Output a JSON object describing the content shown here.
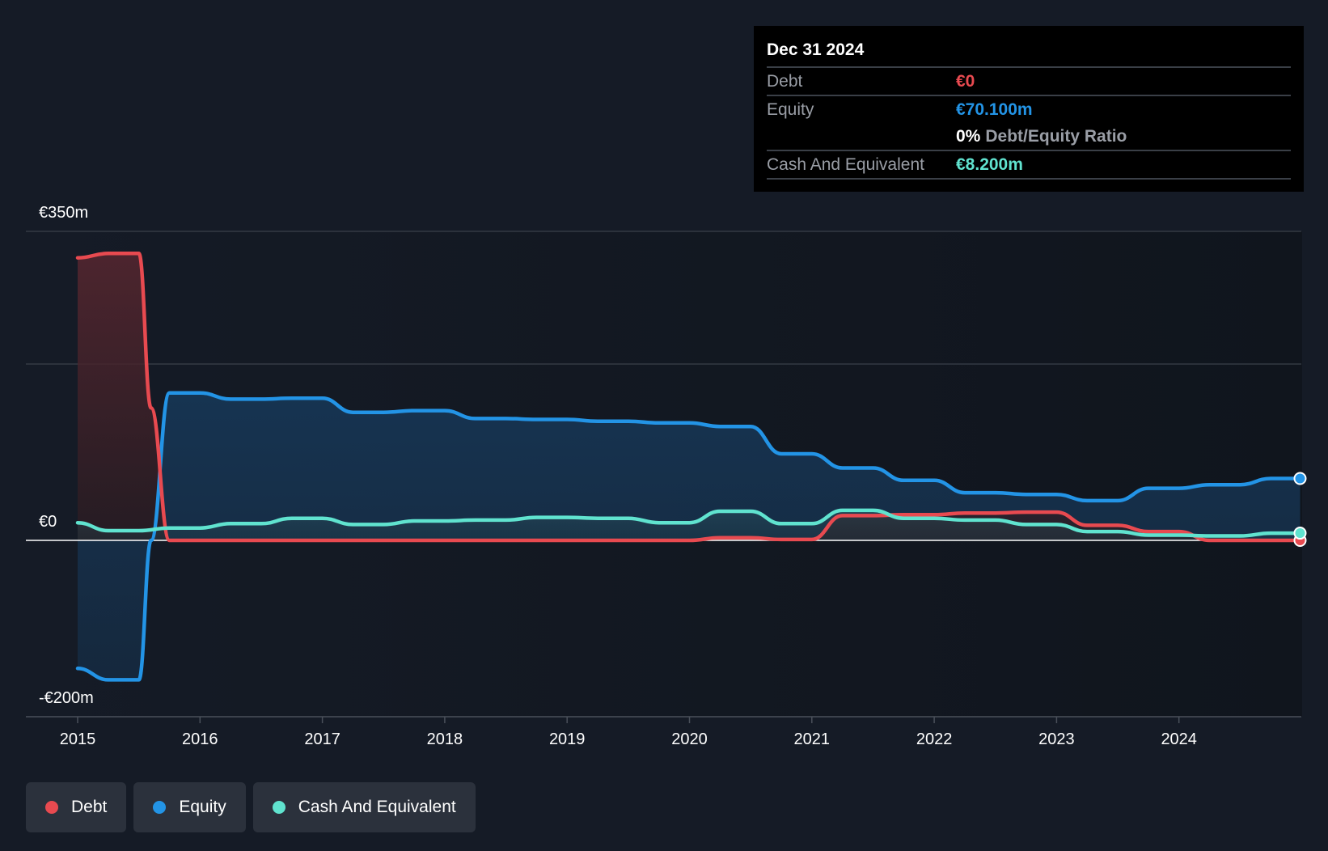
{
  "tooltip": {
    "date": "Dec 31 2024",
    "debt_label": "Debt",
    "debt_value": "€0",
    "equity_label": "Equity",
    "equity_value": "€70.100m",
    "ratio_value": "0%",
    "ratio_label": "Debt/Equity Ratio",
    "cash_label": "Cash And Equivalent",
    "cash_value": "€8.200m"
  },
  "legend": {
    "debt": "Debt",
    "equity": "Equity",
    "cash": "Cash And Equivalent"
  },
  "colors": {
    "debt": "#e84a50",
    "equity": "#2394e6",
    "cash": "#60e3cf",
    "background": "#151b26"
  },
  "chart_data": {
    "type": "area",
    "y_tick_labels": [
      "€350m",
      "€0",
      "-€200m"
    ],
    "x_tick_labels": [
      "2015",
      "2016",
      "2017",
      "2018",
      "2019",
      "2020",
      "2021",
      "2022",
      "2023",
      "2024"
    ],
    "ylim": [
      -200,
      350
    ],
    "unit": "€m",
    "grid": true,
    "legend_position": "bottom-left",
    "series": [
      {
        "name": "Debt",
        "points": [
          [
            2015.0,
            320
          ],
          [
            2015.25,
            325
          ],
          [
            2015.5,
            325
          ],
          [
            2015.6,
            150
          ],
          [
            2015.75,
            0
          ],
          [
            2019.75,
            0
          ],
          [
            2020.0,
            0
          ],
          [
            2020.25,
            3
          ],
          [
            2020.5,
            3
          ],
          [
            2020.75,
            1
          ],
          [
            2021.0,
            1
          ],
          [
            2021.25,
            28
          ],
          [
            2021.5,
            28
          ],
          [
            2021.75,
            29
          ],
          [
            2022.0,
            29
          ],
          [
            2022.25,
            31
          ],
          [
            2022.5,
            31
          ],
          [
            2022.75,
            32
          ],
          [
            2023.0,
            32
          ],
          [
            2023.25,
            17
          ],
          [
            2023.5,
            17
          ],
          [
            2023.75,
            10
          ],
          [
            2024.0,
            10
          ],
          [
            2024.25,
            0
          ],
          [
            2024.99,
            0
          ]
        ]
      },
      {
        "name": "Equity",
        "points": [
          [
            2015.0,
            -145
          ],
          [
            2015.25,
            -158
          ],
          [
            2015.5,
            -158
          ],
          [
            2015.6,
            0
          ],
          [
            2015.75,
            167
          ],
          [
            2016.0,
            167
          ],
          [
            2016.25,
            160
          ],
          [
            2016.5,
            160
          ],
          [
            2016.75,
            161
          ],
          [
            2017.0,
            161
          ],
          [
            2017.25,
            145
          ],
          [
            2017.5,
            145
          ],
          [
            2017.75,
            147
          ],
          [
            2018.0,
            147
          ],
          [
            2018.25,
            138
          ],
          [
            2018.5,
            138
          ],
          [
            2018.75,
            137
          ],
          [
            2019.0,
            137
          ],
          [
            2019.25,
            135
          ],
          [
            2019.5,
            135
          ],
          [
            2019.75,
            133
          ],
          [
            2020.0,
            133
          ],
          [
            2020.25,
            129
          ],
          [
            2020.5,
            129
          ],
          [
            2020.75,
            98
          ],
          [
            2021.0,
            98
          ],
          [
            2021.25,
            82
          ],
          [
            2021.5,
            82
          ],
          [
            2021.75,
            68
          ],
          [
            2022.0,
            68
          ],
          [
            2022.25,
            54
          ],
          [
            2022.5,
            54
          ],
          [
            2022.75,
            52
          ],
          [
            2023.0,
            52
          ],
          [
            2023.25,
            45
          ],
          [
            2023.5,
            45
          ],
          [
            2023.75,
            59
          ],
          [
            2024.0,
            59
          ],
          [
            2024.25,
            63
          ],
          [
            2024.5,
            63
          ],
          [
            2024.75,
            70.1
          ],
          [
            2024.99,
            70.1
          ]
        ]
      },
      {
        "name": "Cash And Equivalent",
        "points": [
          [
            2015.0,
            20
          ],
          [
            2015.25,
            11
          ],
          [
            2015.5,
            11
          ],
          [
            2015.75,
            14
          ],
          [
            2016.0,
            14
          ],
          [
            2016.25,
            19
          ],
          [
            2016.5,
            19
          ],
          [
            2016.75,
            25
          ],
          [
            2017.0,
            25
          ],
          [
            2017.25,
            18
          ],
          [
            2017.5,
            18
          ],
          [
            2017.75,
            22
          ],
          [
            2018.0,
            22
          ],
          [
            2018.25,
            23
          ],
          [
            2018.5,
            23
          ],
          [
            2018.75,
            26
          ],
          [
            2019.0,
            26
          ],
          [
            2019.25,
            25
          ],
          [
            2019.5,
            25
          ],
          [
            2019.75,
            20
          ],
          [
            2020.0,
            20
          ],
          [
            2020.25,
            33
          ],
          [
            2020.5,
            33
          ],
          [
            2020.75,
            19
          ],
          [
            2021.0,
            19
          ],
          [
            2021.25,
            34
          ],
          [
            2021.5,
            34
          ],
          [
            2021.75,
            25
          ],
          [
            2022.0,
            25
          ],
          [
            2022.25,
            23
          ],
          [
            2022.5,
            23
          ],
          [
            2022.75,
            18
          ],
          [
            2023.0,
            18
          ],
          [
            2023.25,
            10
          ],
          [
            2023.5,
            10
          ],
          [
            2023.75,
            6
          ],
          [
            2024.0,
            6
          ],
          [
            2024.25,
            5
          ],
          [
            2024.5,
            5
          ],
          [
            2024.75,
            8.2
          ],
          [
            2024.99,
            8.2
          ]
        ]
      }
    ]
  }
}
